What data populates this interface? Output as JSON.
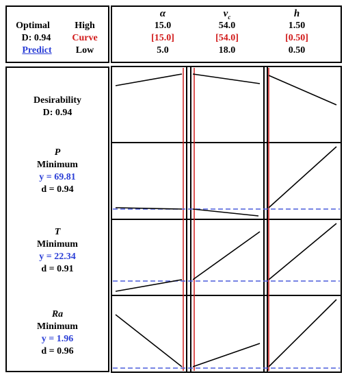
{
  "summary": {
    "optimal_label": "Optimal",
    "d_label": "D: 0.94",
    "predict_label": "Predict",
    "high_label": "High",
    "curve_label": "Curve",
    "low_label": "Low"
  },
  "factors": [
    {
      "symbol": "α",
      "high": "15.0",
      "current": "[15.0]",
      "low": "5.0"
    },
    {
      "symbol": "v",
      "subscript": "c",
      "high": "54.0",
      "current": "[54.0]",
      "low": "18.0"
    },
    {
      "symbol": "h",
      "high": "1.50",
      "current": "[0.50]",
      "low": "0.50"
    }
  ],
  "responses": [
    {
      "title": "Desirability",
      "line2": "D: 0.94"
    },
    {
      "symbol": "P",
      "goal": "Minimum",
      "y": "y = 69.81",
      "d": "d = 0.94"
    },
    {
      "symbol": "T",
      "goal": "Minimum",
      "y": "y = 22.34",
      "d": "d = 0.91"
    },
    {
      "symbol": "Ra",
      "goal": "Minimum",
      "y": "y = 1.96",
      "d": "d = 0.96"
    }
  ],
  "colors": {
    "blue": "#2a3ed6",
    "red": "#d11a1a",
    "line": "#000000",
    "ref_line": "#4a5bdc"
  }
}
